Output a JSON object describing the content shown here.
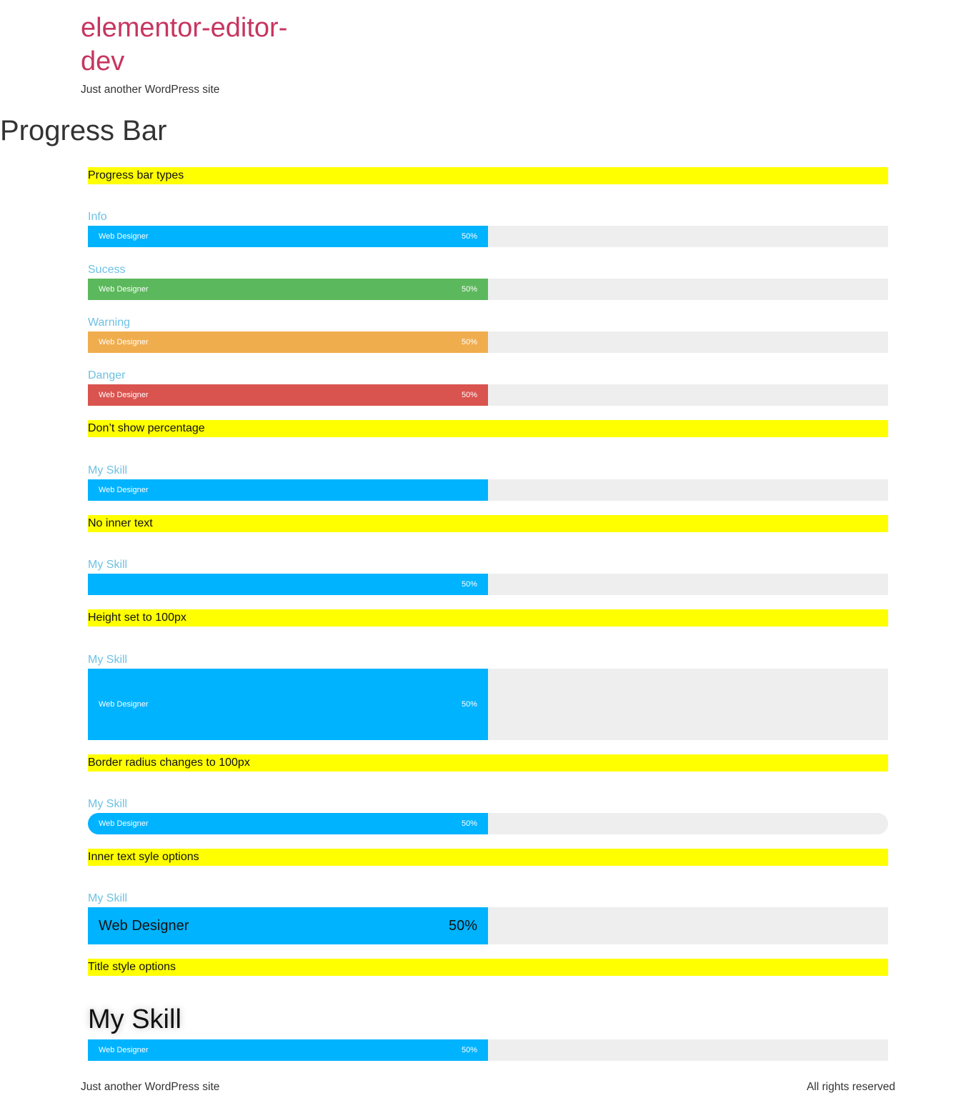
{
  "site": {
    "title": "elementor-editor-dev",
    "tagline": "Just another WordPress site"
  },
  "page": {
    "title": "Progress Bar"
  },
  "sections": {
    "types": "Progress bar types",
    "no_percentage": "Don’t show percentage",
    "no_inner_text": "No inner text",
    "height": "Height set to 100px",
    "radius": "Border radius changes to 100px",
    "inner_style": "Inner text syle options",
    "title_style": "Title style options"
  },
  "bars": [
    {
      "title": "Info",
      "inner_text": "Web Designer",
      "percent_label": "50%",
      "percent": 50,
      "color": "#00b3ff"
    },
    {
      "title": "Sucess",
      "inner_text": "Web Designer",
      "percent_label": "50%",
      "percent": 50,
      "color": "#5cb85c"
    },
    {
      "title": "Warning",
      "inner_text": "Web Designer",
      "percent_label": "50%",
      "percent": 50,
      "color": "#f0ad4e"
    },
    {
      "title": "Danger",
      "inner_text": "Web Designer",
      "percent_label": "50%",
      "percent": 50,
      "color": "#d9534f"
    },
    {
      "title": "My Skill",
      "inner_text": "Web Designer",
      "percent_label": "",
      "percent": 50,
      "color": "#00b3ff"
    },
    {
      "title": "My Skill",
      "inner_text": "",
      "percent_label": "50%",
      "percent": 50,
      "color": "#00b3ff"
    },
    {
      "title": "My Skill",
      "inner_text": "Web Designer",
      "percent_label": "50%",
      "percent": 50,
      "color": "#00b3ff"
    },
    {
      "title": "My Skill",
      "inner_text": "Web Designer",
      "percent_label": "50%",
      "percent": 50,
      "color": "#00b3ff"
    },
    {
      "title": "My Skill",
      "inner_text": "Web Designer",
      "percent_label": "50%",
      "percent": 50,
      "color": "#00b3ff"
    },
    {
      "title": "My Skill",
      "inner_text": "Web Designer",
      "percent_label": "50%",
      "percent": 50,
      "color": "#00b3ff"
    }
  ],
  "colors": {
    "track": "#eeeeee",
    "section_heading_bg": "#ffff00",
    "title_color": "#6ec1e4",
    "site_title_color": "#c7355f"
  },
  "footer": {
    "left": "Just another WordPress site",
    "right": "All rights reserved"
  }
}
